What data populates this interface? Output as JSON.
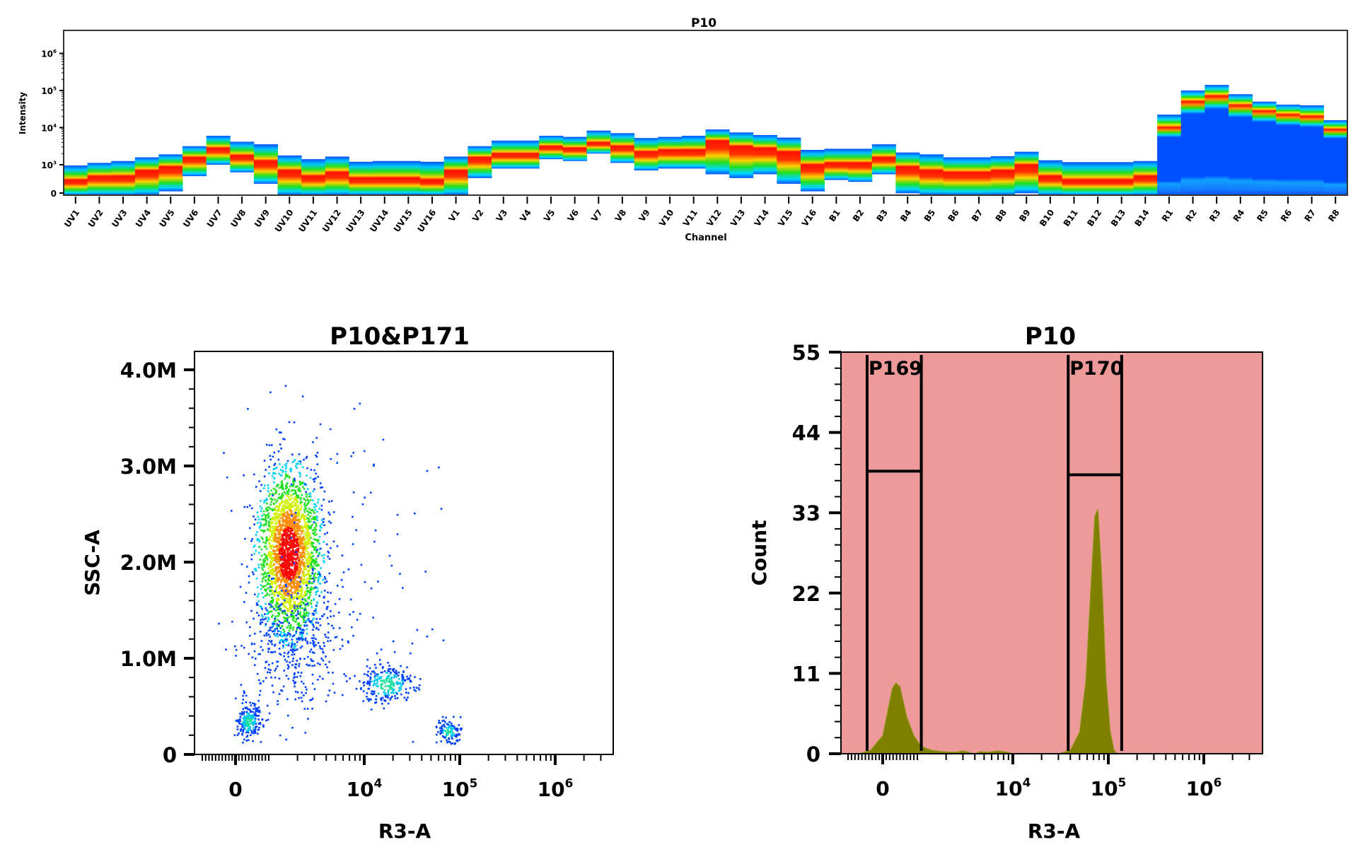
{
  "chart_data": [
    {
      "type": "heatmap",
      "subtype": "spectral-ribbon",
      "title": "P10",
      "xlabel": "Channel",
      "ylabel": "Intensity",
      "yscale": "log",
      "yticks": [
        {
          "value": 0,
          "label": "0"
        },
        {
          "value": 3,
          "label": "10",
          "exp": "3"
        },
        {
          "value": 4,
          "label": "10",
          "exp": "4"
        },
        {
          "value": 5,
          "label": "10",
          "exp": "5"
        },
        {
          "value": 6,
          "label": "10",
          "exp": "6"
        }
      ],
      "channels": [
        {
          "name": "UV1",
          "top": 2.98,
          "peak": 2.6,
          "bottom": 2.2
        },
        {
          "name": "UV2",
          "top": 3.05,
          "peak": 2.7,
          "bottom": 2.2
        },
        {
          "name": "UV3",
          "top": 3.1,
          "peak": 2.7,
          "bottom": 2.2
        },
        {
          "name": "UV4",
          "top": 3.2,
          "peak": 2.85,
          "bottom": 2.2
        },
        {
          "name": "UV5",
          "top": 3.28,
          "peak": 2.95,
          "bottom": 2.3
        },
        {
          "name": "UV6",
          "top": 3.5,
          "peak": 3.2,
          "bottom": 2.7
        },
        {
          "name": "UV7",
          "top": 3.78,
          "peak": 3.45,
          "bottom": 3.0
        },
        {
          "name": "UV8",
          "top": 3.62,
          "peak": 3.25,
          "bottom": 2.8
        },
        {
          "name": "UV9",
          "top": 3.55,
          "peak": 3.1,
          "bottom": 2.5
        },
        {
          "name": "UV10",
          "top": 3.25,
          "peak": 2.85,
          "bottom": 2.2
        },
        {
          "name": "UV11",
          "top": 3.15,
          "peak": 2.7,
          "bottom": 2.2
        },
        {
          "name": "UV12",
          "top": 3.22,
          "peak": 2.8,
          "bottom": 2.2
        },
        {
          "name": "UV13",
          "top": 3.08,
          "peak": 2.65,
          "bottom": 2.2
        },
        {
          "name": "UV14",
          "top": 3.1,
          "peak": 2.65,
          "bottom": 2.2
        },
        {
          "name": "UV15",
          "top": 3.1,
          "peak": 2.65,
          "bottom": 2.2
        },
        {
          "name": "UV16",
          "top": 3.08,
          "peak": 2.6,
          "bottom": 2.2
        },
        {
          "name": "V1",
          "top": 3.22,
          "peak": 2.85,
          "bottom": 2.2
        },
        {
          "name": "V2",
          "top": 3.5,
          "peak": 3.2,
          "bottom": 2.65
        },
        {
          "name": "V3",
          "top": 3.65,
          "peak": 3.3,
          "bottom": 2.9
        },
        {
          "name": "V4",
          "top": 3.65,
          "peak": 3.3,
          "bottom": 2.9
        },
        {
          "name": "V5",
          "top": 3.78,
          "peak": 3.5,
          "bottom": 3.15
        },
        {
          "name": "V6",
          "top": 3.75,
          "peak": 3.45,
          "bottom": 3.1
        },
        {
          "name": "V7",
          "top": 3.92,
          "peak": 3.6,
          "bottom": 3.3
        },
        {
          "name": "V8",
          "top": 3.85,
          "peak": 3.5,
          "bottom": 3.05
        },
        {
          "name": "V9",
          "top": 3.72,
          "peak": 3.35,
          "bottom": 2.85
        },
        {
          "name": "V10",
          "top": 3.75,
          "peak": 3.4,
          "bottom": 2.9
        },
        {
          "name": "V11",
          "top": 3.78,
          "peak": 3.4,
          "bottom": 2.9
        },
        {
          "name": "V12",
          "top": 3.95,
          "peak": 3.65,
          "bottom": 2.75
        },
        {
          "name": "V13",
          "top": 3.87,
          "peak": 3.5,
          "bottom": 2.65
        },
        {
          "name": "V14",
          "top": 3.8,
          "peak": 3.45,
          "bottom": 2.75
        },
        {
          "name": "V15",
          "top": 3.73,
          "peak": 3.35,
          "bottom": 2.5
        },
        {
          "name": "V16",
          "top": 3.4,
          "peak": 3.0,
          "bottom": 2.3
        },
        {
          "name": "B1",
          "top": 3.43,
          "peak": 3.05,
          "bottom": 2.6
        },
        {
          "name": "B2",
          "top": 3.43,
          "peak": 3.05,
          "bottom": 2.55
        },
        {
          "name": "B3",
          "top": 3.55,
          "peak": 3.2,
          "bottom": 2.75
        },
        {
          "name": "B4",
          "top": 3.33,
          "peak": 2.95,
          "bottom": 2.25
        },
        {
          "name": "B5",
          "top": 3.28,
          "peak": 2.85,
          "bottom": 2.2
        },
        {
          "name": "B6",
          "top": 3.2,
          "peak": 2.8,
          "bottom": 2.2
        },
        {
          "name": "B7",
          "top": 3.2,
          "peak": 2.8,
          "bottom": 2.2
        },
        {
          "name": "B8",
          "top": 3.23,
          "peak": 2.85,
          "bottom": 2.2
        },
        {
          "name": "B9",
          "top": 3.35,
          "peak": 3.0,
          "bottom": 2.25
        },
        {
          "name": "B10",
          "top": 3.12,
          "peak": 2.7,
          "bottom": 2.2
        },
        {
          "name": "B11",
          "top": 3.07,
          "peak": 2.6,
          "bottom": 2.2
        },
        {
          "name": "B12",
          "top": 3.07,
          "peak": 2.6,
          "bottom": 2.2
        },
        {
          "name": "B13",
          "top": 3.07,
          "peak": 2.6,
          "bottom": 2.2
        },
        {
          "name": "B14",
          "top": 3.1,
          "peak": 2.7,
          "bottom": 2.2
        },
        {
          "name": "R1",
          "top": 4.35,
          "peak": 4.0,
          "bottom": 2.2
        },
        {
          "name": "R2",
          "top": 5.0,
          "peak": 4.7,
          "bottom": 2.2
        },
        {
          "name": "R3",
          "top": 5.15,
          "peak": 4.85,
          "bottom": 2.2
        },
        {
          "name": "R4",
          "top": 4.9,
          "peak": 4.6,
          "bottom": 2.2
        },
        {
          "name": "R5",
          "top": 4.7,
          "peak": 4.45,
          "bottom": 2.2
        },
        {
          "name": "R6",
          "top": 4.62,
          "peak": 4.35,
          "bottom": 2.2
        },
        {
          "name": "R7",
          "top": 4.6,
          "peak": 4.3,
          "bottom": 2.2
        },
        {
          "name": "R8",
          "top": 4.2,
          "peak": 3.95,
          "bottom": 2.2
        }
      ]
    },
    {
      "type": "scatter",
      "subtype": "density-dot-plot",
      "title": "P10&P171",
      "xlabel": "R3-A",
      "ylabel": "SSC-A",
      "xscale": "biexponential",
      "xticks": [
        {
          "value": 0,
          "label": "0"
        },
        {
          "value": 10000,
          "label": "10",
          "exp": "4"
        },
        {
          "value": 100000,
          "label": "10",
          "exp": "5"
        },
        {
          "value": 1000000,
          "label": "10",
          "exp": "6"
        }
      ],
      "yticks": [
        {
          "value": 0,
          "label": "0"
        },
        {
          "value": 1000000,
          "label": "1.0M"
        },
        {
          "value": 2000000,
          "label": "2.0M"
        },
        {
          "value": 3000000,
          "label": "3.0M"
        },
        {
          "value": 4000000,
          "label": "4.0M"
        }
      ],
      "xlim": [
        -1200,
        5000000
      ],
      "ylim": [
        0,
        4200000
      ],
      "clusters": [
        {
          "x": 1600,
          "y": 2100000,
          "sx_decades": 0.16,
          "sy": 430000,
          "n": 2600,
          "density": "high"
        },
        {
          "x": 1800,
          "y": 1200000,
          "sx_decades": 0.25,
          "sy": 350000,
          "n": 350,
          "density": "low"
        },
        {
          "x": 380,
          "y": 350000,
          "sx_decades": 0.0,
          "sx_lin": 180,
          "sy": 90000,
          "n": 220,
          "density": "medium"
        },
        {
          "x": 17000,
          "y": 740000,
          "sx_decades": 0.15,
          "sy": 110000,
          "n": 260,
          "density": "medium"
        },
        {
          "x": 75000,
          "y": 250000,
          "sx_decades": 0.06,
          "sy": 60000,
          "n": 120,
          "density": "medium"
        },
        {
          "x": 6000,
          "y": 2000000,
          "sx_decades": 0.5,
          "sy": 900000,
          "n": 120,
          "density": "sparse"
        }
      ]
    },
    {
      "type": "area",
      "subtype": "histogram",
      "title": "P10",
      "xlabel": "R3-A",
      "ylabel": "Count",
      "xscale": "biexponential",
      "xticks": [
        {
          "value": 0,
          "label": "0"
        },
        {
          "value": 10000,
          "label": "10",
          "exp": "4"
        },
        {
          "value": 100000,
          "label": "10",
          "exp": "5"
        },
        {
          "value": 1000000,
          "label": "10",
          "exp": "6"
        }
      ],
      "yticks": [
        0,
        11,
        22,
        33,
        44,
        55
      ],
      "ylim": [
        0,
        55
      ],
      "background": "#EE9A9B",
      "fill": "#808000",
      "points": [
        [
          -700,
          0
        ],
        [
          -350,
          0.5
        ],
        [
          0,
          2.5
        ],
        [
          150,
          6
        ],
        [
          280,
          9
        ],
        [
          380,
          9.7
        ],
        [
          500,
          9.2
        ],
        [
          700,
          5
        ],
        [
          900,
          2.5
        ],
        [
          1100,
          1
        ],
        [
          1400,
          0.5
        ],
        [
          1800,
          0.3
        ],
        [
          2500,
          0.2
        ],
        [
          3000,
          0.4
        ],
        [
          3500,
          0.2
        ],
        [
          4000,
          0
        ],
        [
          4500,
          0.3
        ],
        [
          5500,
          0.2
        ],
        [
          7000,
          0.4
        ],
        [
          9000,
          0.2
        ],
        [
          10000,
          0
        ],
        [
          30000,
          0
        ],
        [
          40000,
          0.5
        ],
        [
          50000,
          3
        ],
        [
          58000,
          10
        ],
        [
          65000,
          22
        ],
        [
          72000,
          32.5
        ],
        [
          78000,
          33.5
        ],
        [
          85000,
          25
        ],
        [
          95000,
          10
        ],
        [
          105000,
          3
        ],
        [
          115000,
          0.5
        ],
        [
          125000,
          0
        ]
      ],
      "gates": [
        {
          "label": "P169",
          "x_min": -450,
          "x_max": 1100,
          "level": 38.7
        },
        {
          "label": "P170",
          "x_min": 38000,
          "x_max": 138000,
          "level": 38.2
        }
      ]
    }
  ]
}
